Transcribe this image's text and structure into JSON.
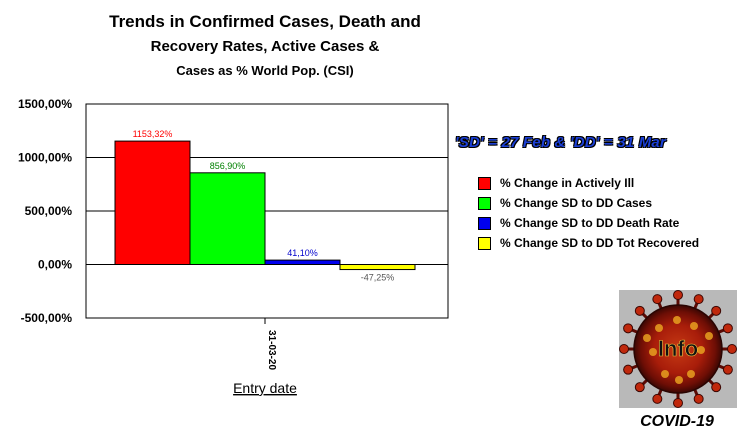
{
  "chart_data": {
    "type": "bar",
    "title_lines": [
      "Trends in Confirmed Cases, Death and",
      "Recovery Rates, Active Cases &",
      "Cases as % World Pop. (CSI)"
    ],
    "categories": [
      "31-03-20"
    ],
    "series": [
      {
        "name": "% Change in Actively Ill",
        "values": [
          1153.32
        ],
        "label": "1153,32%",
        "color": "#ff0000",
        "label_color": "#ff0000"
      },
      {
        "name": "% Change SD to DD Cases",
        "values": [
          856.9
        ],
        "label": "856,90%",
        "color": "#00ff00",
        "label_color": "#008000"
      },
      {
        "name": "% Change SD to DD Death Rate",
        "values": [
          41.1
        ],
        "label": "41,10%",
        "color": "#0000ee",
        "label_color": "#0000cc"
      },
      {
        "name": "% Change SD to DD Tot Recovered",
        "values": [
          -47.25
        ],
        "label": "-47,25%",
        "color": "#ffff00",
        "label_color": "#555555"
      }
    ],
    "yticks": [
      1500,
      1000,
      500,
      0,
      -500
    ],
    "ytick_labels": [
      "1500,00%",
      "1000,00%",
      "500,00%",
      "0,00%",
      "-500,00%"
    ],
    "ylim": [
      -500,
      1500
    ],
    "xlabel": "Entry date",
    "ylabel": "",
    "grid": true,
    "legend_position": "right"
  },
  "note": "'SD' = 27 Feb & 'DD' = 31 Mar",
  "logo": {
    "center_text": "Info",
    "caption": "COVID-19"
  }
}
